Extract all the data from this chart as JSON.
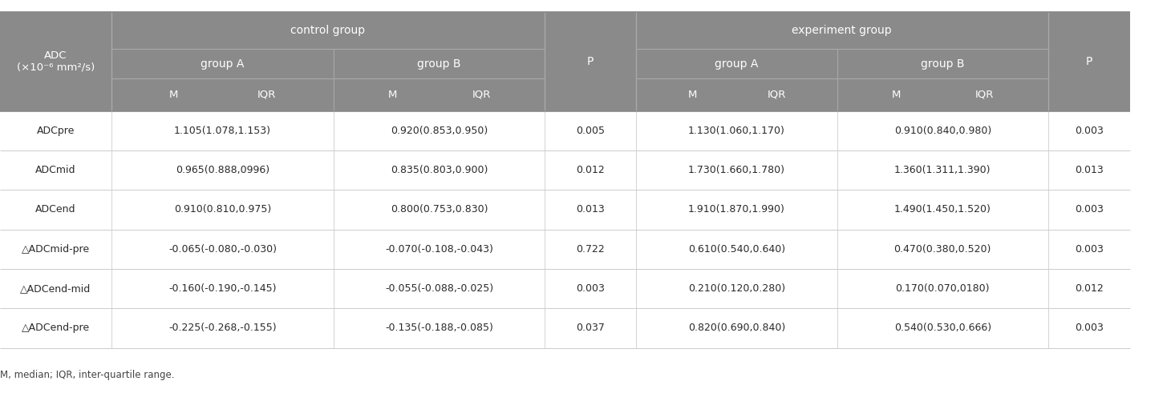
{
  "title_col": "ADC\n(×10⁻⁶ mm²/s)",
  "rows": [
    [
      "ADCpre",
      "1.105(1.078,1.153)",
      "0.920(0.853,0.950)",
      "0.005",
      "1.130(1.060,1.170)",
      "0.910(0.840,0.980)",
      "0.003"
    ],
    [
      "ADCmid",
      "0.965(0.888,0996)",
      "0.835(0.803,0.900)",
      "0.012",
      "1.730(1.660,1.780)",
      "1.360(1.311,1.390)",
      "0.013"
    ],
    [
      "ADCend",
      "0.910(0.810,0.975)",
      "0.800(0.753,0.830)",
      "0.013",
      "1.910(1.870,1.990)",
      "1.490(1.450,1.520)",
      "0.003"
    ],
    [
      "△ADCmid-pre",
      "-0.065(-0.080,-0.030)",
      "-0.070(-0.108,-0.043)",
      "0.722",
      "0.610(0.540,0.640)",
      "0.470(0.380,0.520)",
      "0.003"
    ],
    [
      "△ADCend-mid",
      "-0.160(-0.190,-0.145)",
      "-0.055(-0.088,-0.025)",
      "0.003",
      "0.210(0.120,0.280)",
      "0.170(0.070,0180)",
      "0.012"
    ],
    [
      "△ADCend-pre",
      "-0.225(-0.268,-0.155)",
      "-0.135(-0.188,-0.085)",
      "0.037",
      "0.820(0.690,0.840)",
      "0.540(0.530,0.666)",
      "0.003"
    ]
  ],
  "footer": "M, median; IQR, inter-quartile range.",
  "header_bg": "#8a8a8a",
  "header_text": "#ffffff",
  "body_bg": "#ffffff",
  "body_text": "#2a2a2a",
  "line_color_body": "#cccccc",
  "line_color_header": "#aaaaaa"
}
